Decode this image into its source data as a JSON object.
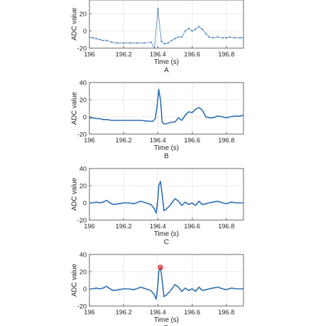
{
  "chart_data": [
    {
      "type": "line",
      "caption": "A",
      "xlabel": "Time (s)",
      "ylabel": "ADC value",
      "xlim": [
        196,
        196.9
      ],
      "ylim": [
        -20,
        40
      ],
      "xticks": [
        196,
        196.2,
        196.4,
        196.6,
        196.8
      ],
      "xtick_labels": [
        "196",
        "196.2",
        "196.4",
        "196.6",
        "196.8"
      ],
      "yticks": [
        -20,
        0,
        20
      ],
      "ytick_labels": [
        "-20",
        "0",
        "20"
      ],
      "grid": true,
      "color": "#2a6cb1",
      "style": "thin-line-markers",
      "series": [
        {
          "x": [
            196.0,
            196.02,
            196.04,
            196.06,
            196.08,
            196.1,
            196.13,
            196.16,
            196.2,
            196.24,
            196.28,
            196.32,
            196.36,
            196.38,
            196.4,
            196.42,
            196.44,
            196.46,
            196.48,
            196.5,
            196.52,
            196.54,
            196.56,
            196.58,
            196.6,
            196.62,
            196.64,
            196.66,
            196.68,
            196.7,
            196.72,
            196.75,
            196.78,
            196.8,
            196.82,
            196.85,
            196.88,
            196.9
          ],
          "y": [
            -7,
            -8,
            -9,
            -10,
            -11,
            -11,
            -13,
            -14,
            -14,
            -14,
            -14,
            -14,
            -13,
            -20,
            26,
            -12,
            -15,
            -14,
            -11,
            -9,
            -7,
            -7,
            0,
            3,
            0,
            2,
            5,
            2,
            -3,
            -7,
            -8,
            -7,
            -8,
            -8,
            -7,
            -8,
            -8,
            -8
          ]
        }
      ]
    },
    {
      "type": "line",
      "caption": "B",
      "xlabel": "Time (s)",
      "ylabel": "ADC value",
      "xlim": [
        196,
        196.9
      ],
      "ylim": [
        -20,
        40
      ],
      "xticks": [
        196,
        196.2,
        196.4,
        196.6,
        196.8
      ],
      "xtick_labels": [
        "196",
        "196.2",
        "196.4",
        "196.6",
        "196.8"
      ],
      "yticks": [
        -20,
        0,
        20,
        40
      ],
      "ytick_labels": [
        "-20",
        "0",
        "20",
        "40"
      ],
      "grid": true,
      "color": "#2a6cb1",
      "style": "thick-line",
      "series": [
        {
          "x": [
            196.0,
            196.02,
            196.04,
            196.06,
            196.08,
            196.1,
            196.13,
            196.16,
            196.2,
            196.25,
            196.3,
            196.35,
            196.37,
            196.385,
            196.395,
            196.405,
            196.415,
            196.425,
            196.435,
            196.45,
            196.48,
            196.5,
            196.52,
            196.54,
            196.56,
            196.58,
            196.6,
            196.62,
            196.64,
            196.66,
            196.68,
            196.7,
            196.72,
            196.75,
            196.78,
            196.8,
            196.82,
            196.85,
            196.88,
            196.9
          ],
          "y": [
            -1,
            -1,
            -2,
            -2,
            -3,
            -3,
            -4,
            -4,
            -4,
            -4,
            -4,
            -5,
            -5,
            -2,
            12,
            32,
            20,
            -6,
            -8,
            -8,
            -6,
            -6,
            -1,
            -4,
            2,
            6,
            5,
            9,
            11,
            8,
            0,
            -1,
            -1,
            1,
            0,
            -1,
            0,
            1,
            1,
            2
          ]
        }
      ]
    },
    {
      "type": "line",
      "caption": "C",
      "xlabel": "Time (s)",
      "ylabel": "ADC value",
      "xlim": [
        196,
        196.9
      ],
      "ylim": [
        -20,
        40
      ],
      "xticks": [
        196,
        196.2,
        196.4,
        196.6,
        196.8
      ],
      "xtick_labels": [
        "196",
        "196.2",
        "196.4",
        "196.6",
        "196.8"
      ],
      "yticks": [
        -20,
        0,
        20,
        40
      ],
      "ytick_labels": [
        "-20",
        "0",
        "20",
        "40"
      ],
      "grid": true,
      "color": "#2a6cb1",
      "style": "thick-line",
      "series": [
        {
          "x": [
            196.0,
            196.02,
            196.04,
            196.06,
            196.08,
            196.1,
            196.12,
            196.14,
            196.17,
            196.2,
            196.23,
            196.26,
            196.3,
            196.33,
            196.36,
            196.38,
            196.39,
            196.4,
            196.405,
            196.415,
            196.425,
            196.435,
            196.45,
            196.47,
            196.5,
            196.52,
            196.54,
            196.56,
            196.58,
            196.6,
            196.62,
            196.64,
            196.66,
            196.68,
            196.7,
            196.72,
            196.75,
            196.78,
            196.8,
            196.83,
            196.86,
            196.9
          ],
          "y": [
            0,
            0,
            1,
            0,
            1,
            3,
            0,
            -2,
            -1,
            0,
            0,
            -1,
            2,
            0,
            -2,
            -7,
            -12,
            5,
            20,
            25,
            10,
            -9,
            -7,
            -3,
            5,
            2,
            -3,
            1,
            -2,
            0,
            -3,
            2,
            -2,
            -1,
            0,
            1,
            2,
            0,
            -1,
            1,
            0,
            0
          ]
        }
      ]
    },
    {
      "type": "line",
      "caption": "D",
      "xlabel": "Time (s)",
      "ylabel": "ADC value",
      "xlim": [
        196,
        196.9
      ],
      "ylim": [
        -20,
        40
      ],
      "xticks": [
        196,
        196.2,
        196.4,
        196.6,
        196.8
      ],
      "xtick_labels": [
        "196",
        "196.2",
        "196.4",
        "196.6",
        "196.8"
      ],
      "yticks": [
        -20,
        0,
        20,
        40
      ],
      "ytick_labels": [
        "-20",
        "0",
        "20",
        "40"
      ],
      "grid": true,
      "color": "#2a6cb1",
      "style": "thick-line",
      "marker": {
        "x": 196.415,
        "y": 25,
        "color": "#d62728"
      },
      "series": [
        {
          "x": [
            196.0,
            196.02,
            196.04,
            196.06,
            196.08,
            196.1,
            196.12,
            196.14,
            196.17,
            196.2,
            196.23,
            196.26,
            196.3,
            196.33,
            196.36,
            196.38,
            196.39,
            196.4,
            196.405,
            196.415,
            196.425,
            196.435,
            196.45,
            196.47,
            196.5,
            196.52,
            196.54,
            196.56,
            196.58,
            196.6,
            196.62,
            196.64,
            196.66,
            196.68,
            196.7,
            196.72,
            196.75,
            196.78,
            196.8,
            196.83,
            196.86,
            196.9
          ],
          "y": [
            0,
            0,
            1,
            0,
            1,
            3,
            0,
            -2,
            -1,
            0,
            0,
            -1,
            2,
            0,
            -2,
            -7,
            -12,
            5,
            20,
            25,
            10,
            -9,
            -7,
            -3,
            5,
            2,
            -3,
            1,
            -2,
            0,
            -3,
            2,
            -2,
            -1,
            0,
            1,
            2,
            0,
            -1,
            1,
            0,
            0
          ]
        }
      ]
    }
  ]
}
